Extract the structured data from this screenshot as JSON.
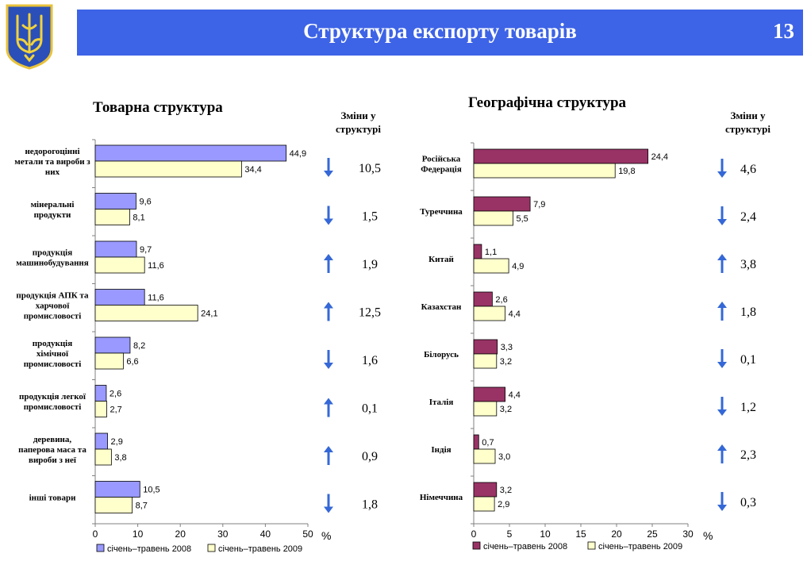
{
  "header": {
    "title": "Структура експорту товарів",
    "page_number": "13"
  },
  "colors": {
    "header_bg": "#3d63e6",
    "series_2008_left": "#9999ff",
    "series_2008_right": "#993366",
    "series_2009": "#ffffcc",
    "arrow": "#3568d6"
  },
  "left": {
    "section_title": "Товарна структура",
    "changes_title": [
      "Зміни у",
      "структурі"
    ],
    "percent_label": "%"
  },
  "right": {
    "section_title": "Географічна структура",
    "changes_title": [
      "Зміни у",
      "структурі"
    ],
    "percent_label": "%"
  },
  "chart_data": [
    {
      "type": "bar",
      "orientation": "horizontal",
      "title": "Товарна структура",
      "categories": [
        [
          "недорогоцінні",
          "метали та вироби з",
          "них"
        ],
        [
          "мінеральні",
          "продукти"
        ],
        [
          "продукція",
          "машинобудування"
        ],
        [
          "продукція АПК та",
          "харчової",
          "промисловості"
        ],
        [
          "продукція",
          "хімічної",
          "промисловості"
        ],
        [
          "продукція легкої",
          "промисловості"
        ],
        [
          "деревина,",
          "паперова маса та",
          "вироби з неї"
        ],
        [
          "інші товари"
        ]
      ],
      "series": [
        {
          "name": "січень–травень 2008",
          "values": [
            44.9,
            9.6,
            9.7,
            11.6,
            8.2,
            2.6,
            2.9,
            10.5
          ],
          "labels": [
            "44,9",
            "9,6",
            "9,7",
            "11,6",
            "8,2",
            "2,6",
            "2,9",
            "10,5"
          ]
        },
        {
          "name": "січень–травень 2009",
          "values": [
            34.4,
            8.1,
            11.6,
            24.1,
            6.6,
            2.7,
            3.8,
            8.7
          ],
          "labels": [
            "34,4",
            "8,1",
            "11,6",
            "24,1",
            "6,6",
            "2,7",
            "3,8",
            "8,7"
          ]
        }
      ],
      "changes": {
        "values": [
          "10,5",
          "1,5",
          "1,9",
          "12,5",
          "1,6",
          "0,1",
          "0,9",
          "1,8"
        ],
        "directions": [
          "down",
          "down",
          "up",
          "up",
          "down",
          "up",
          "up",
          "down"
        ]
      },
      "xlim": [
        0,
        50
      ],
      "xticks": [
        0,
        10,
        20,
        30,
        40,
        50
      ],
      "xtick_labels": [
        "0",
        "10",
        "20",
        "30",
        "40",
        "50"
      ],
      "xlabel": "%",
      "legend_position": "bottom"
    },
    {
      "type": "bar",
      "orientation": "horizontal",
      "title": "Географічна структура",
      "categories": [
        [
          "Російська",
          "Федерація"
        ],
        [
          "Туреччина"
        ],
        [
          "Китай"
        ],
        [
          "Казахстан"
        ],
        [
          "Білорусь"
        ],
        [
          "Італія"
        ],
        [
          "Індія"
        ],
        [
          "Німеччина"
        ]
      ],
      "series": [
        {
          "name": "січень–травень 2008",
          "values": [
            24.4,
            7.9,
            1.1,
            2.6,
            3.3,
            4.4,
            0.7,
            3.2
          ],
          "labels": [
            "24,4",
            "7,9",
            "1,1",
            "2,6",
            "3,3",
            "4,4",
            "0,7",
            "3,2"
          ]
        },
        {
          "name": "січень–травень 2009",
          "values": [
            19.8,
            5.5,
            4.9,
            4.4,
            3.2,
            3.2,
            3.0,
            2.9
          ],
          "labels": [
            "19,8",
            "5,5",
            "4,9",
            "4,4",
            "3,2",
            "3,2",
            "3,0",
            "2,9"
          ]
        }
      ],
      "changes": {
        "values": [
          "4,6",
          "2,4",
          "3,8",
          "1,8",
          "0,1",
          "1,2",
          "2,3",
          "0,3"
        ],
        "directions": [
          "down",
          "down",
          "up",
          "up",
          "down",
          "down",
          "up",
          "down"
        ]
      },
      "xlim": [
        0,
        30
      ],
      "xticks": [
        0,
        5,
        10,
        15,
        20,
        25,
        30
      ],
      "xtick_labels": [
        "0",
        "5",
        "10",
        "15",
        "20",
        "25",
        "30"
      ],
      "xlabel": "%",
      "legend_position": "bottom"
    }
  ]
}
